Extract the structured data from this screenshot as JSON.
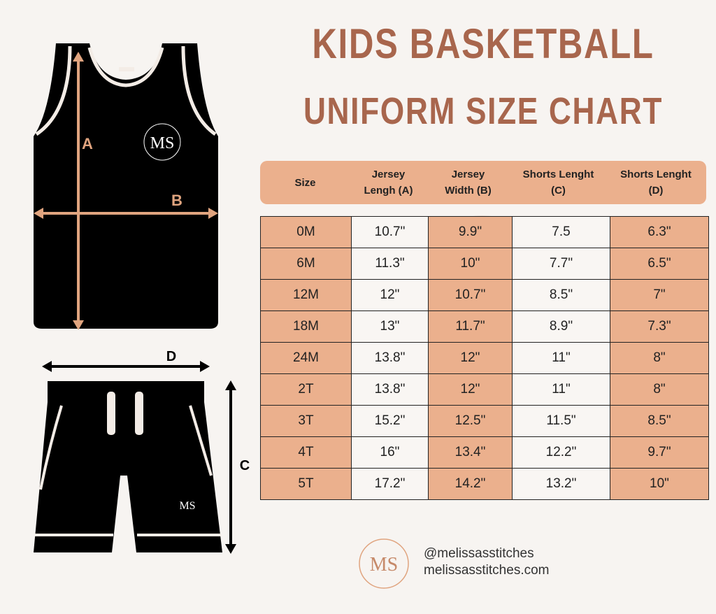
{
  "header": {
    "title": "KIDS BASKETBALL",
    "subtitle": "UNIFORM SIZE CHART"
  },
  "labels": {
    "a": "A",
    "b": "B",
    "c": "C",
    "d": "D"
  },
  "logo": "MS",
  "table": {
    "columns": [
      "Size",
      "Jersey Lengh (A)",
      "Jersey Width (B)",
      "Shorts Lenght (C)",
      "Shorts Lenght (D)"
    ],
    "rows": [
      [
        "0M",
        "10.7\"",
        "9.9\"",
        "7.5",
        "6.3\""
      ],
      [
        "6M",
        "11.3\"",
        "10\"",
        "7.7\"",
        "6.5\""
      ],
      [
        "12M",
        "12\"",
        "10.7\"",
        "8.5\"",
        "7\""
      ],
      [
        "18M",
        "13\"",
        "11.7\"",
        "8.9\"",
        "7.3\""
      ],
      [
        "24M",
        "13.8\"",
        "12\"",
        "11\"",
        "8\""
      ],
      [
        "2T",
        "13.8\"",
        "12\"",
        "11\"",
        "8\""
      ],
      [
        "3T",
        "15.2\"",
        "12.5\"",
        "11.5\"",
        "8.5\""
      ],
      [
        "4T",
        "16\"",
        "13.4\"",
        "12.2\"",
        "9.7\""
      ],
      [
        "5T",
        "17.2\"",
        "14.2\"",
        "13.2\"",
        "10\""
      ]
    ]
  },
  "footer": {
    "handle": "@melissasstitches",
    "website": "melissasstitches.com"
  }
}
